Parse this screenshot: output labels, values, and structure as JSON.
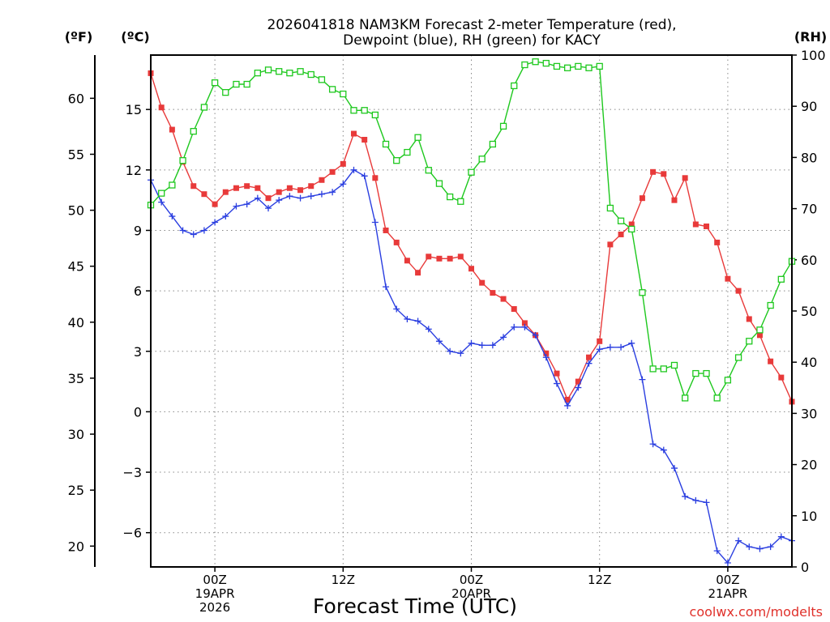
{
  "chart_data": {
    "type": "line",
    "title_line1": "2026041818 NAM3KM Forecast 2-meter Temperature (red),",
    "title_line2": "Dewpoint (blue), RH (green) for KACY",
    "xlabel": "Forecast Time (UTC)",
    "credit": "coolwx.com/modelts",
    "left_unit_f": "(ºF)",
    "left_unit_c": "(ºC)",
    "right_unit": "(RH)",
    "x_unit": "forecast hour",
    "xlim": [
      0,
      60
    ],
    "celsius_axis": {
      "ylim": [
        -7.7,
        17.7
      ],
      "ticks": [
        -6,
        -3,
        0,
        3,
        6,
        9,
        12,
        15
      ]
    },
    "fahrenheit_axis": {
      "ylim": [
        18.14,
        63.86
      ],
      "ticks": [
        20,
        25,
        30,
        35,
        40,
        45,
        50,
        55,
        60
      ]
    },
    "rh_axis": {
      "ylim": [
        0,
        100
      ],
      "ticks": [
        0,
        10,
        20,
        30,
        40,
        50,
        60,
        70,
        80,
        90,
        100
      ]
    },
    "x_ticks": [
      {
        "x": 6,
        "line1": "00Z",
        "line2": "19APR",
        "line3": "2026"
      },
      {
        "x": 18,
        "line1": "12Z",
        "line2": "",
        "line3": ""
      },
      {
        "x": 30,
        "line1": "00Z",
        "line2": "20APR",
        "line3": ""
      },
      {
        "x": 42,
        "line1": "12Z",
        "line2": "",
        "line3": ""
      },
      {
        "x": 54,
        "line1": "00Z",
        "line2": "21APR",
        "line3": ""
      }
    ],
    "series": [
      {
        "name": "Temperature",
        "axis": "C",
        "color": "#e83a3a",
        "marker": "filled-square",
        "x": [
          0,
          1,
          2,
          3,
          4,
          5,
          6,
          7,
          8,
          9,
          10,
          11,
          12,
          13,
          14,
          15,
          16,
          17,
          18,
          19,
          20,
          21,
          22,
          23,
          24,
          25,
          26,
          27,
          28,
          29,
          30,
          31,
          32,
          33,
          34,
          35,
          36,
          37,
          38,
          39,
          40,
          41,
          42,
          43,
          44,
          45,
          46,
          47,
          48,
          49,
          50,
          51,
          52,
          53,
          54,
          55,
          56,
          57,
          58,
          59,
          60
        ],
        "values": [
          16.8,
          15.1,
          14.0,
          12.4,
          11.2,
          10.8,
          10.3,
          10.9,
          11.1,
          11.2,
          11.1,
          10.6,
          10.9,
          11.1,
          11.0,
          11.2,
          11.5,
          11.9,
          12.3,
          13.8,
          13.5,
          11.6,
          9.0,
          8.4,
          7.5,
          6.9,
          7.7,
          7.6,
          7.6,
          7.7,
          7.1,
          6.4,
          5.9,
          5.6,
          5.1,
          4.4,
          3.8,
          2.9,
          1.9,
          0.6,
          1.5,
          2.7,
          3.5,
          8.3,
          8.8,
          9.3,
          10.6,
          11.9,
          11.8,
          10.5,
          11.6,
          9.3,
          9.2,
          8.4,
          6.6,
          6.0,
          4.6,
          3.8,
          2.5,
          1.7,
          0.5
        ]
      },
      {
        "name": "Dewpoint",
        "axis": "C",
        "color": "#2a3ee0",
        "marker": "plus",
        "x": [
          0,
          1,
          2,
          3,
          4,
          5,
          6,
          7,
          8,
          9,
          10,
          11,
          12,
          13,
          14,
          15,
          16,
          17,
          18,
          19,
          20,
          21,
          22,
          23,
          24,
          25,
          26,
          27,
          28,
          29,
          30,
          31,
          32,
          33,
          34,
          35,
          36,
          37,
          38,
          39,
          40,
          41,
          42,
          43,
          44,
          45,
          46,
          47,
          48,
          49,
          50,
          51,
          52,
          53,
          54,
          55,
          56,
          57,
          58,
          59,
          60
        ],
        "values": [
          11.5,
          10.4,
          9.7,
          9.0,
          8.8,
          9.0,
          9.4,
          9.7,
          10.2,
          10.3,
          10.6,
          10.1,
          10.5,
          10.7,
          10.6,
          10.7,
          10.8,
          10.9,
          11.3,
          12.0,
          11.7,
          9.4,
          6.2,
          5.1,
          4.6,
          4.5,
          4.1,
          3.5,
          3.0,
          2.9,
          3.4,
          3.3,
          3.3,
          3.7,
          4.2,
          4.2,
          3.8,
          2.7,
          1.4,
          0.3,
          1.2,
          2.4,
          3.1,
          3.2,
          3.2,
          3.4,
          1.6,
          -1.6,
          -1.9,
          -2.8,
          -4.2,
          -4.4,
          -4.5,
          -6.9,
          -7.5,
          -6.4,
          -6.7,
          -6.8,
          -6.7,
          -6.2,
          -6.4
        ]
      },
      {
        "name": "RH",
        "axis": "RH",
        "color": "#1ec81e",
        "marker": "open-square",
        "x": [
          0,
          1,
          2,
          3,
          4,
          5,
          6,
          7,
          8,
          9,
          10,
          11,
          12,
          13,
          14,
          15,
          16,
          17,
          18,
          19,
          20,
          21,
          22,
          23,
          24,
          25,
          26,
          27,
          28,
          29,
          30,
          31,
          32,
          33,
          34,
          35,
          36,
          37,
          38,
          39,
          40,
          41,
          42,
          43,
          44,
          45,
          46,
          47,
          48,
          49,
          50,
          51,
          52,
          53,
          54,
          55,
          56,
          57,
          58,
          59,
          60
        ],
        "values": [
          70.7,
          73.0,
          74.6,
          79.4,
          85.1,
          89.8,
          94.6,
          92.7,
          94.3,
          94.3,
          96.5,
          97.1,
          96.8,
          96.5,
          96.8,
          96.2,
          95.2,
          93.3,
          92.4,
          89.2,
          89.2,
          88.3,
          82.6,
          79.4,
          81.0,
          83.9,
          77.5,
          74.9,
          72.3,
          71.4,
          77.1,
          79.7,
          82.6,
          86.1,
          94.0,
          98.1,
          98.7,
          98.4,
          97.8,
          97.5,
          97.8,
          97.5,
          97.8,
          70.1,
          67.6,
          66.0,
          53.6,
          38.7,
          38.7,
          39.4,
          33.0,
          37.8,
          37.8,
          33.0,
          36.5,
          40.9,
          44.1,
          46.3,
          51.1,
          56.2,
          59.7
        ]
      }
    ]
  }
}
